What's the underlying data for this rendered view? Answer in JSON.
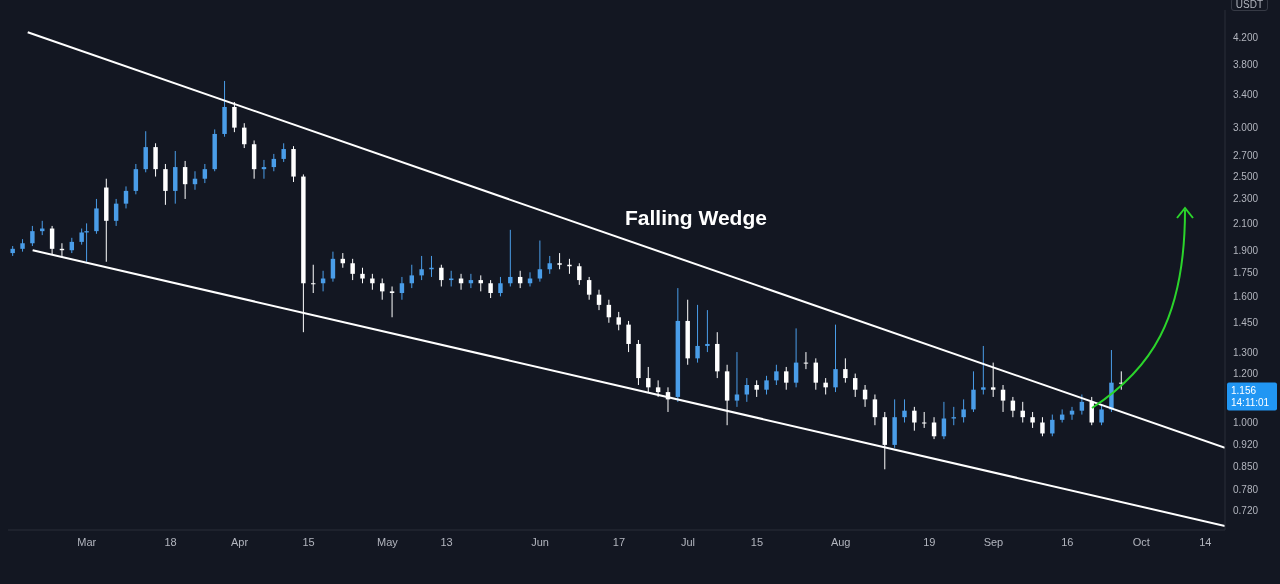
{
  "chart_data": {
    "type": "candlestick",
    "ylabel": "USDT",
    "annotations": [
      "Falling Wedge",
      "1.156",
      "14:11:01"
    ],
    "x": [
      "--02-14",
      "--02-16",
      "--02-18",
      "--02-20",
      "--02-22",
      "--02-24",
      "--02-26",
      "--02-28",
      "--03-01",
      "--03-03",
      "--03-05",
      "--03-07",
      "--03-09",
      "--03-11",
      "--03-13",
      "--03-15",
      "--03-17",
      "--03-19",
      "--03-21",
      "--03-23",
      "--03-25",
      "--03-27",
      "--03-29",
      "--03-31",
      "--04-02",
      "--04-04",
      "--04-06",
      "--04-08",
      "--04-10",
      "--04-12",
      "--04-14",
      "--04-16",
      "--04-18",
      "--04-20",
      "--04-22",
      "--04-24",
      "--04-26",
      "--04-28",
      "--04-30",
      "--05-02",
      "--05-04",
      "--05-06",
      "--05-08",
      "--05-10",
      "--05-12",
      "--05-14",
      "--05-16",
      "--05-18",
      "--05-20",
      "--05-22",
      "--05-24",
      "--05-26",
      "--05-28",
      "--05-30",
      "--06-01",
      "--06-03",
      "--06-05",
      "--06-07",
      "--06-09",
      "--06-11",
      "--06-13",
      "--06-15",
      "--06-17",
      "--06-19",
      "--06-21",
      "--06-23",
      "--06-25",
      "--06-27",
      "--06-29",
      "--07-01",
      "--07-03",
      "--07-05",
      "--07-07",
      "--07-09",
      "--07-11",
      "--07-13",
      "--07-15",
      "--07-17",
      "--07-19",
      "--07-21",
      "--07-23",
      "--07-25",
      "--07-27",
      "--07-29",
      "--07-31",
      "--08-02",
      "--08-04",
      "--08-06",
      "--08-08",
      "--08-10",
      "--08-12",
      "--08-14",
      "--08-16",
      "--08-18",
      "--08-20",
      "--08-22",
      "--08-24",
      "--08-26",
      "--08-28",
      "--08-30",
      "--09-01",
      "--09-03",
      "--09-05",
      "--09-07",
      "--09-09",
      "--09-11",
      "--09-13",
      "--09-15",
      "--09-17",
      "--09-19",
      "--09-21",
      "--09-23",
      "--09-25",
      "--09-27"
    ],
    "ohlc": [
      [
        1.88,
        1.93,
        1.86,
        1.91
      ],
      [
        1.91,
        1.98,
        1.89,
        1.95
      ],
      [
        1.95,
        2.08,
        1.93,
        2.04
      ],
      [
        2.04,
        2.12,
        2.01,
        2.06
      ],
      [
        2.06,
        2.08,
        1.87,
        1.91
      ],
      [
        1.91,
        1.95,
        1.85,
        1.9
      ],
      [
        1.9,
        1.99,
        1.88,
        1.96
      ],
      [
        1.96,
        2.06,
        1.94,
        2.03
      ],
      [
        2.03,
        2.1,
        1.82,
        2.04
      ],
      [
        2.04,
        2.3,
        2.02,
        2.22
      ],
      [
        2.4,
        2.48,
        1.82,
        2.12
      ],
      [
        2.12,
        2.3,
        2.08,
        2.26
      ],
      [
        2.26,
        2.41,
        2.22,
        2.37
      ],
      [
        2.37,
        2.62,
        2.34,
        2.57
      ],
      [
        2.57,
        2.96,
        2.54,
        2.79
      ],
      [
        2.79,
        2.83,
        2.5,
        2.57
      ],
      [
        2.57,
        2.62,
        2.25,
        2.37
      ],
      [
        2.37,
        2.75,
        2.26,
        2.59
      ],
      [
        2.59,
        2.65,
        2.3,
        2.43
      ],
      [
        2.43,
        2.55,
        2.38,
        2.48
      ],
      [
        2.48,
        2.62,
        2.44,
        2.57
      ],
      [
        2.57,
        2.98,
        2.55,
        2.93
      ],
      [
        2.93,
        3.57,
        2.9,
        3.24
      ],
      [
        3.24,
        3.3,
        2.95,
        3.0
      ],
      [
        3.0,
        3.05,
        2.78,
        2.82
      ],
      [
        2.82,
        2.86,
        2.48,
        2.57
      ],
      [
        2.57,
        2.66,
        2.48,
        2.59
      ],
      [
        2.59,
        2.72,
        2.55,
        2.67
      ],
      [
        2.67,
        2.83,
        2.64,
        2.77
      ],
      [
        2.77,
        2.8,
        2.45,
        2.5
      ],
      [
        2.5,
        2.52,
        1.4,
        1.68
      ],
      [
        1.68,
        1.8,
        1.62,
        1.68
      ],
      [
        1.68,
        1.76,
        1.63,
        1.71
      ],
      [
        1.71,
        1.89,
        1.69,
        1.84
      ],
      [
        1.84,
        1.88,
        1.78,
        1.81
      ],
      [
        1.81,
        1.84,
        1.7,
        1.74
      ],
      [
        1.74,
        1.78,
        1.68,
        1.71
      ],
      [
        1.71,
        1.74,
        1.64,
        1.68
      ],
      [
        1.68,
        1.71,
        1.58,
        1.63
      ],
      [
        1.63,
        1.66,
        1.48,
        1.62
      ],
      [
        1.62,
        1.72,
        1.58,
        1.68
      ],
      [
        1.68,
        1.8,
        1.65,
        1.73
      ],
      [
        1.73,
        1.86,
        1.7,
        1.77
      ],
      [
        1.77,
        1.86,
        1.72,
        1.78
      ],
      [
        1.78,
        1.8,
        1.66,
        1.7
      ],
      [
        1.7,
        1.76,
        1.66,
        1.71
      ],
      [
        1.71,
        1.74,
        1.64,
        1.68
      ],
      [
        1.68,
        1.74,
        1.65,
        1.7
      ],
      [
        1.7,
        1.73,
        1.63,
        1.68
      ],
      [
        1.68,
        1.7,
        1.59,
        1.62
      ],
      [
        1.62,
        1.72,
        1.6,
        1.68
      ],
      [
        1.68,
        2.05,
        1.66,
        1.72
      ],
      [
        1.72,
        1.76,
        1.65,
        1.68
      ],
      [
        1.68,
        1.75,
        1.66,
        1.71
      ],
      [
        1.71,
        1.97,
        1.69,
        1.77
      ],
      [
        1.77,
        1.86,
        1.74,
        1.81
      ],
      [
        1.81,
        1.88,
        1.77,
        1.8
      ],
      [
        1.8,
        1.84,
        1.74,
        1.79
      ],
      [
        1.79,
        1.81,
        1.67,
        1.7
      ],
      [
        1.7,
        1.72,
        1.58,
        1.61
      ],
      [
        1.61,
        1.64,
        1.52,
        1.55
      ],
      [
        1.55,
        1.58,
        1.45,
        1.48
      ],
      [
        1.48,
        1.51,
        1.41,
        1.44
      ],
      [
        1.44,
        1.46,
        1.3,
        1.34
      ],
      [
        1.34,
        1.36,
        1.15,
        1.18
      ],
      [
        1.18,
        1.23,
        1.12,
        1.14
      ],
      [
        1.14,
        1.17,
        1.1,
        1.12
      ],
      [
        1.12,
        1.14,
        1.04,
        1.09
      ],
      [
        1.1,
        1.65,
        1.08,
        1.46
      ],
      [
        1.46,
        1.58,
        1.24,
        1.27
      ],
      [
        1.27,
        1.55,
        1.25,
        1.33
      ],
      [
        1.33,
        1.52,
        1.3,
        1.34
      ],
      [
        1.34,
        1.4,
        1.18,
        1.21
      ],
      [
        1.21,
        1.24,
        0.99,
        1.085
      ],
      [
        1.085,
        1.3,
        1.06,
        1.11
      ],
      [
        1.11,
        1.18,
        1.08,
        1.15
      ],
      [
        1.15,
        1.17,
        1.1,
        1.13
      ],
      [
        1.13,
        1.19,
        1.11,
        1.17
      ],
      [
        1.17,
        1.24,
        1.15,
        1.21
      ],
      [
        1.21,
        1.23,
        1.13,
        1.16
      ],
      [
        1.16,
        1.42,
        1.14,
        1.25
      ],
      [
        1.25,
        1.3,
        1.22,
        1.25
      ],
      [
        1.25,
        1.27,
        1.13,
        1.16
      ],
      [
        1.16,
        1.18,
        1.11,
        1.14
      ],
      [
        1.14,
        1.44,
        1.12,
        1.22
      ],
      [
        1.22,
        1.27,
        1.16,
        1.18
      ],
      [
        1.18,
        1.2,
        1.1,
        1.13
      ],
      [
        1.13,
        1.15,
        1.06,
        1.09
      ],
      [
        1.09,
        1.11,
        0.99,
        1.02
      ],
      [
        1.02,
        1.04,
        0.84,
        0.92
      ],
      [
        0.92,
        1.09,
        0.91,
        1.02
      ],
      [
        1.02,
        1.09,
        1.0,
        1.045
      ],
      [
        1.045,
        1.06,
        0.97,
        1.0
      ],
      [
        1.0,
        1.04,
        0.98,
        1.0
      ],
      [
        1.0,
        1.02,
        0.94,
        0.95
      ],
      [
        0.95,
        1.08,
        0.94,
        1.015
      ],
      [
        1.015,
        1.06,
        0.99,
        1.02
      ],
      [
        1.02,
        1.09,
        1.0,
        1.05
      ],
      [
        1.05,
        1.21,
        1.04,
        1.13
      ],
      [
        1.13,
        1.33,
        1.11,
        1.14
      ],
      [
        1.14,
        1.25,
        1.1,
        1.13
      ],
      [
        1.13,
        1.15,
        1.04,
        1.085
      ],
      [
        1.085,
        1.1,
        1.02,
        1.045
      ],
      [
        1.045,
        1.08,
        1.0,
        1.02
      ],
      [
        1.02,
        1.04,
        0.98,
        1.0
      ],
      [
        1.0,
        1.02,
        0.95,
        0.96
      ],
      [
        0.96,
        1.03,
        0.95,
        1.01
      ],
      [
        1.01,
        1.05,
        1.0,
        1.03
      ],
      [
        1.03,
        1.06,
        1.01,
        1.045
      ],
      [
        1.045,
        1.11,
        1.03,
        1.08
      ],
      [
        1.08,
        1.1,
        0.99,
        1.0
      ],
      [
        1.0,
        1.07,
        0.99,
        1.05
      ],
      [
        1.05,
        1.31,
        1.04,
        1.16
      ],
      [
        1.16,
        1.21,
        1.13,
        1.156
      ]
    ],
    "colors": [
      "#4a9de8",
      "#4a9de8",
      "#4a9de8",
      "#4a9de8",
      "#ffffff",
      "#ffffff",
      "#4a9de8",
      "#4a9de8",
      "#4a9de8",
      "#4a9de8",
      "#ffffff",
      "#4a9de8",
      "#4a9de8",
      "#4a9de8",
      "#4a9de8",
      "#ffffff",
      "#ffffff",
      "#4a9de8",
      "#ffffff",
      "#4a9de8",
      "#4a9de8",
      "#4a9de8",
      "#4a9de8",
      "#ffffff",
      "#ffffff",
      "#ffffff",
      "#4a9de8",
      "#4a9de8",
      "#4a9de8",
      "#ffffff",
      "#ffffff",
      "#ffffff",
      "#4a9de8",
      "#4a9de8",
      "#ffffff",
      "#ffffff",
      "#ffffff",
      "#ffffff",
      "#ffffff",
      "#ffffff",
      "#4a9de8",
      "#4a9de8",
      "#4a9de8",
      "#4a9de8",
      "#ffffff",
      "#4a9de8",
      "#ffffff",
      "#4a9de8",
      "#ffffff",
      "#ffffff",
      "#4a9de8",
      "#4a9de8",
      "#ffffff",
      "#4a9de8",
      "#4a9de8",
      "#4a9de8",
      "#ffffff",
      "#ffffff",
      "#ffffff",
      "#ffffff",
      "#ffffff",
      "#ffffff",
      "#ffffff",
      "#ffffff",
      "#ffffff",
      "#ffffff",
      "#ffffff",
      "#ffffff",
      "#4a9de8",
      "#ffffff",
      "#4a9de8",
      "#4a9de8",
      "#ffffff",
      "#ffffff",
      "#4a9de8",
      "#4a9de8",
      "#ffffff",
      "#4a9de8",
      "#4a9de8",
      "#ffffff",
      "#4a9de8",
      "#ffffff",
      "#ffffff",
      "#ffffff",
      "#4a9de8",
      "#ffffff",
      "#ffffff",
      "#ffffff",
      "#ffffff",
      "#ffffff",
      "#4a9de8",
      "#4a9de8",
      "#ffffff",
      "#ffffff",
      "#ffffff",
      "#4a9de8",
      "#4a9de8",
      "#4a9de8",
      "#4a9de8",
      "#4a9de8",
      "#ffffff",
      "#ffffff",
      "#ffffff",
      "#ffffff",
      "#ffffff",
      "#ffffff",
      "#4a9de8",
      "#4a9de8",
      "#4a9de8",
      "#4a9de8",
      "#ffffff",
      "#4a9de8",
      "#4a9de8",
      "#ffffff"
    ],
    "series": [
      {
        "type": "line",
        "color": "#ffffff",
        "x": [
          "--02-17",
          "--10-18"
        ],
        "values": [
          4.28,
          0.91
        ]
      },
      {
        "type": "line",
        "color": "#ffffff",
        "x": [
          "--02-18",
          "--10-18"
        ],
        "values": [
          1.9,
          0.68
        ]
      }
    ],
    "xlim": [
      "--02-13",
      "--10-18"
    ],
    "xticks": [
      {
        "value": "--03-01",
        "label": "Mar"
      },
      {
        "value": "--03-18",
        "label": "18"
      },
      {
        "value": "--04-01",
        "label": "Apr"
      },
      {
        "value": "--04-15",
        "label": "15"
      },
      {
        "value": "--05-01",
        "label": "May"
      },
      {
        "value": "--05-13",
        "label": "13"
      },
      {
        "value": "--06-01",
        "label": "Jun"
      },
      {
        "value": "--06-17",
        "label": "17"
      },
      {
        "value": "--07-01",
        "label": "Jul"
      },
      {
        "value": "--07-15",
        "label": "15"
      },
      {
        "value": "--08-01",
        "label": "Aug"
      },
      {
        "value": "--08-19",
        "label": "19"
      },
      {
        "value": "--09-01",
        "label": "Sep"
      },
      {
        "value": "--09-16",
        "label": "16"
      },
      {
        "value": "--10-01",
        "label": "Oct"
      },
      {
        "value": "--10-14",
        "label": "14"
      }
    ],
    "log": "y",
    "ylim": [
      0.67,
      4.65
    ],
    "yticks": [
      {
        "value": 0.72,
        "label": "0.720"
      },
      {
        "value": 0.78,
        "label": "0.780"
      },
      {
        "value": 0.85,
        "label": "0.850"
      },
      {
        "value": 0.92,
        "label": "0.920"
      },
      {
        "value": 1,
        "label": "1.000"
      },
      {
        "value": 1.2,
        "label": "1.200"
      },
      {
        "value": 1.3,
        "label": "1.300"
      },
      {
        "value": 1.45,
        "label": "1.450"
      },
      {
        "value": 1.6,
        "label": "1.600"
      },
      {
        "value": 1.75,
        "label": "1.750"
      },
      {
        "value": 1.9,
        "label": "1.900"
      },
      {
        "value": 2.1,
        "label": "2.100"
      },
      {
        "value": 2.3,
        "label": "2.300"
      },
      {
        "value": 2.5,
        "label": "2.500"
      },
      {
        "value": 2.7,
        "label": "2.700"
      },
      {
        "value": 3,
        "label": "3.000"
      },
      {
        "value": 3.4,
        "label": "3.400"
      },
      {
        "value": 3.8,
        "label": "3.800"
      },
      {
        "value": 4.2,
        "label": "4.200"
      }
    ],
    "grid": false
  }
}
